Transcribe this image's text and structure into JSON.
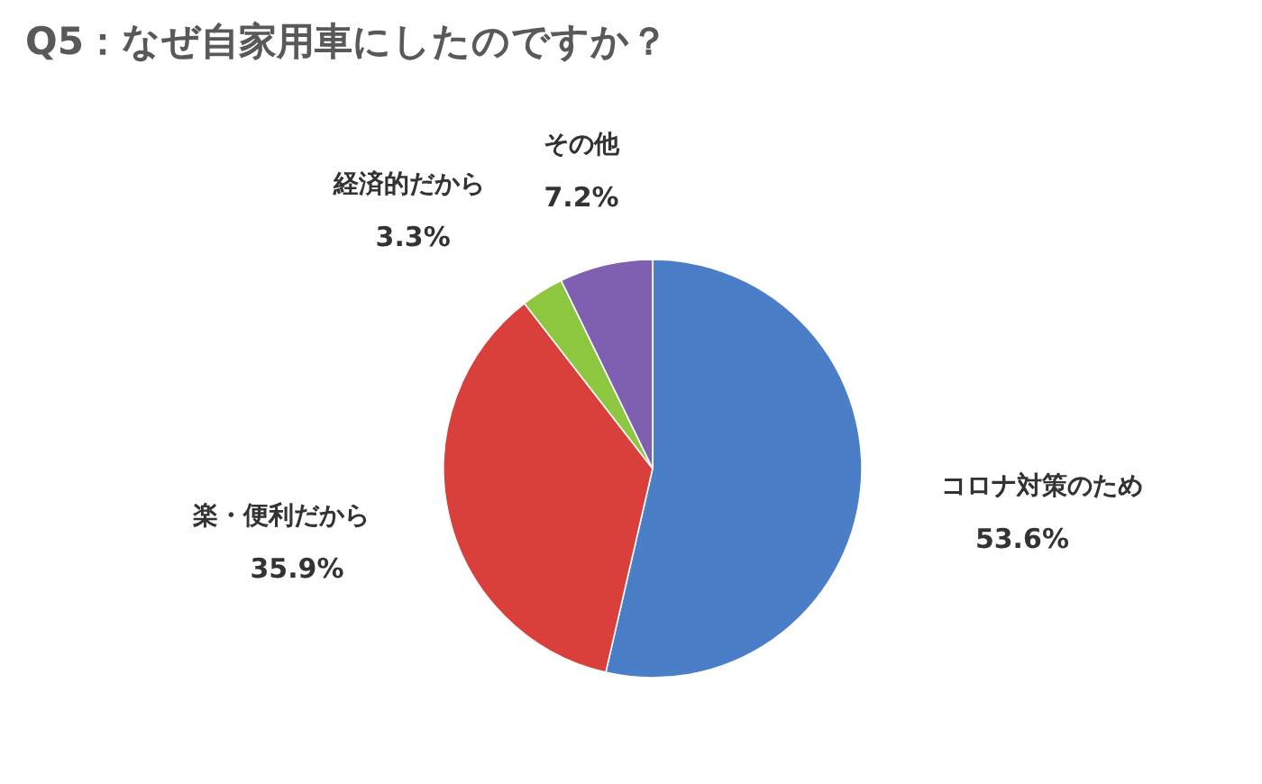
{
  "chart_data": {
    "type": "pie",
    "title": "Q5：なぜ自家用車にしたのですか？",
    "categories": [
      "コロナ対策のため",
      "楽・便利だから",
      "経済的だから",
      "その他"
    ],
    "values": [
      53.6,
      35.9,
      3.3,
      7.2
    ],
    "value_labels": [
      "53.6%",
      "35.9%",
      "3.3%",
      "7.2%"
    ],
    "colors": [
      "#4a7fc8",
      "#d9403c",
      "#8dc63f",
      "#7e5fb0"
    ]
  }
}
